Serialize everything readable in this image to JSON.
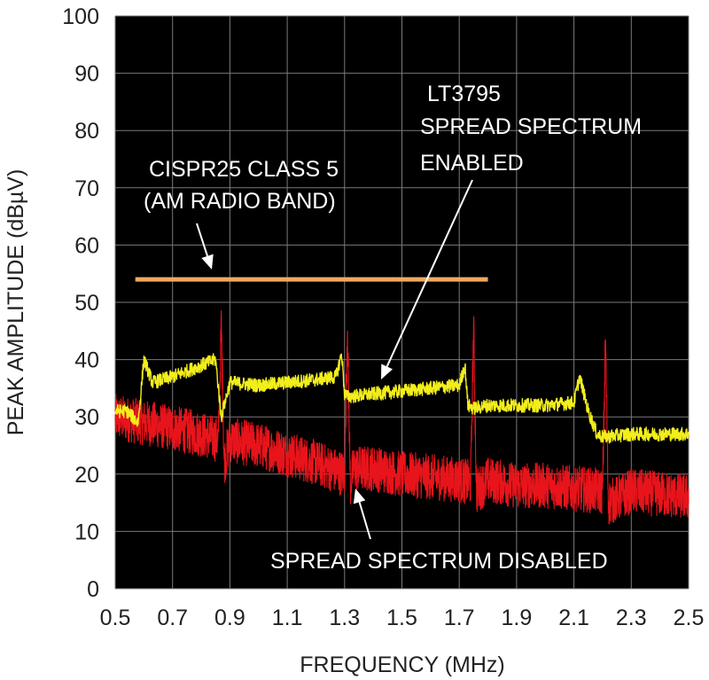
{
  "chart_data": {
    "type": "line",
    "title": "",
    "xlabel": "FREQUENCY (MHz)",
    "ylabel": "PEAK AMPLITUDE (dBµV)",
    "xlim": [
      0.5,
      2.5
    ],
    "ylim": [
      0,
      100
    ],
    "xticks": [
      "0.5",
      "0.7",
      "0.9",
      "1.1",
      "1.3",
      "1.5",
      "1.7",
      "1.9",
      "2.1",
      "2.3",
      "2.5"
    ],
    "yticks": [
      "0",
      "10",
      "20",
      "30",
      "40",
      "50",
      "60",
      "70",
      "80",
      "90",
      "100"
    ],
    "grid": true,
    "background": "#000000",
    "gridColor": "#7a7a7a",
    "series": [
      {
        "color": "#f2ee1c",
        "x": [
          0.5,
          0.54,
          0.58,
          0.6,
          0.63,
          0.7,
          0.8,
          0.85,
          0.87,
          0.9,
          1.0,
          1.1,
          1.2,
          1.27,
          1.29,
          1.3,
          1.31,
          1.4,
          1.5,
          1.6,
          1.7,
          1.72,
          1.73,
          1.75,
          1.8,
          1.9,
          2.0,
          2.1,
          2.12,
          2.15,
          2.18,
          2.2,
          2.3,
          2.4,
          2.5
        ],
        "values": [
          31,
          31,
          29,
          40,
          36,
          37,
          39,
          40,
          30,
          36,
          35.5,
          36,
          36.5,
          37,
          41,
          34,
          33.5,
          34,
          34.5,
          35,
          35.5,
          39,
          32,
          31.5,
          32,
          32,
          32,
          32.5,
          37,
          31,
          27,
          26.5,
          27,
          27,
          27
        ]
      },
      {
        "color": "#e8141b",
        "x": [
          0.5,
          0.6,
          0.7,
          0.8,
          0.86,
          0.87,
          0.88,
          0.9,
          1.0,
          1.1,
          1.2,
          1.3,
          1.31,
          1.32,
          1.33,
          1.4,
          1.5,
          1.6,
          1.7,
          1.74,
          1.75,
          1.76,
          1.8,
          1.9,
          2.0,
          2.1,
          2.2,
          2.21,
          2.22,
          2.3,
          2.4,
          2.5
        ],
        "values": [
          30,
          29,
          28,
          27,
          26,
          46,
          22,
          26,
          25,
          23.5,
          22,
          20,
          46,
          18,
          21,
          21,
          20,
          19.5,
          19,
          18.5,
          46,
          17,
          19,
          18,
          18,
          17.5,
          17,
          44,
          15,
          17,
          16.5,
          16
        ]
      }
    ],
    "limit_line": {
      "x": [
        0.57,
        1.8
      ],
      "y": 54,
      "color": "#f0a860"
    },
    "annotations": {
      "cispr": [
        "CISPR25 CLASS 5",
        "(AM RADIO BAND)"
      ],
      "lt3795": [
        "LT3795",
        "SPREAD SPECTRUM",
        "ENABLED"
      ],
      "disabled": "SPREAD SPECTRUM DISABLED"
    }
  }
}
